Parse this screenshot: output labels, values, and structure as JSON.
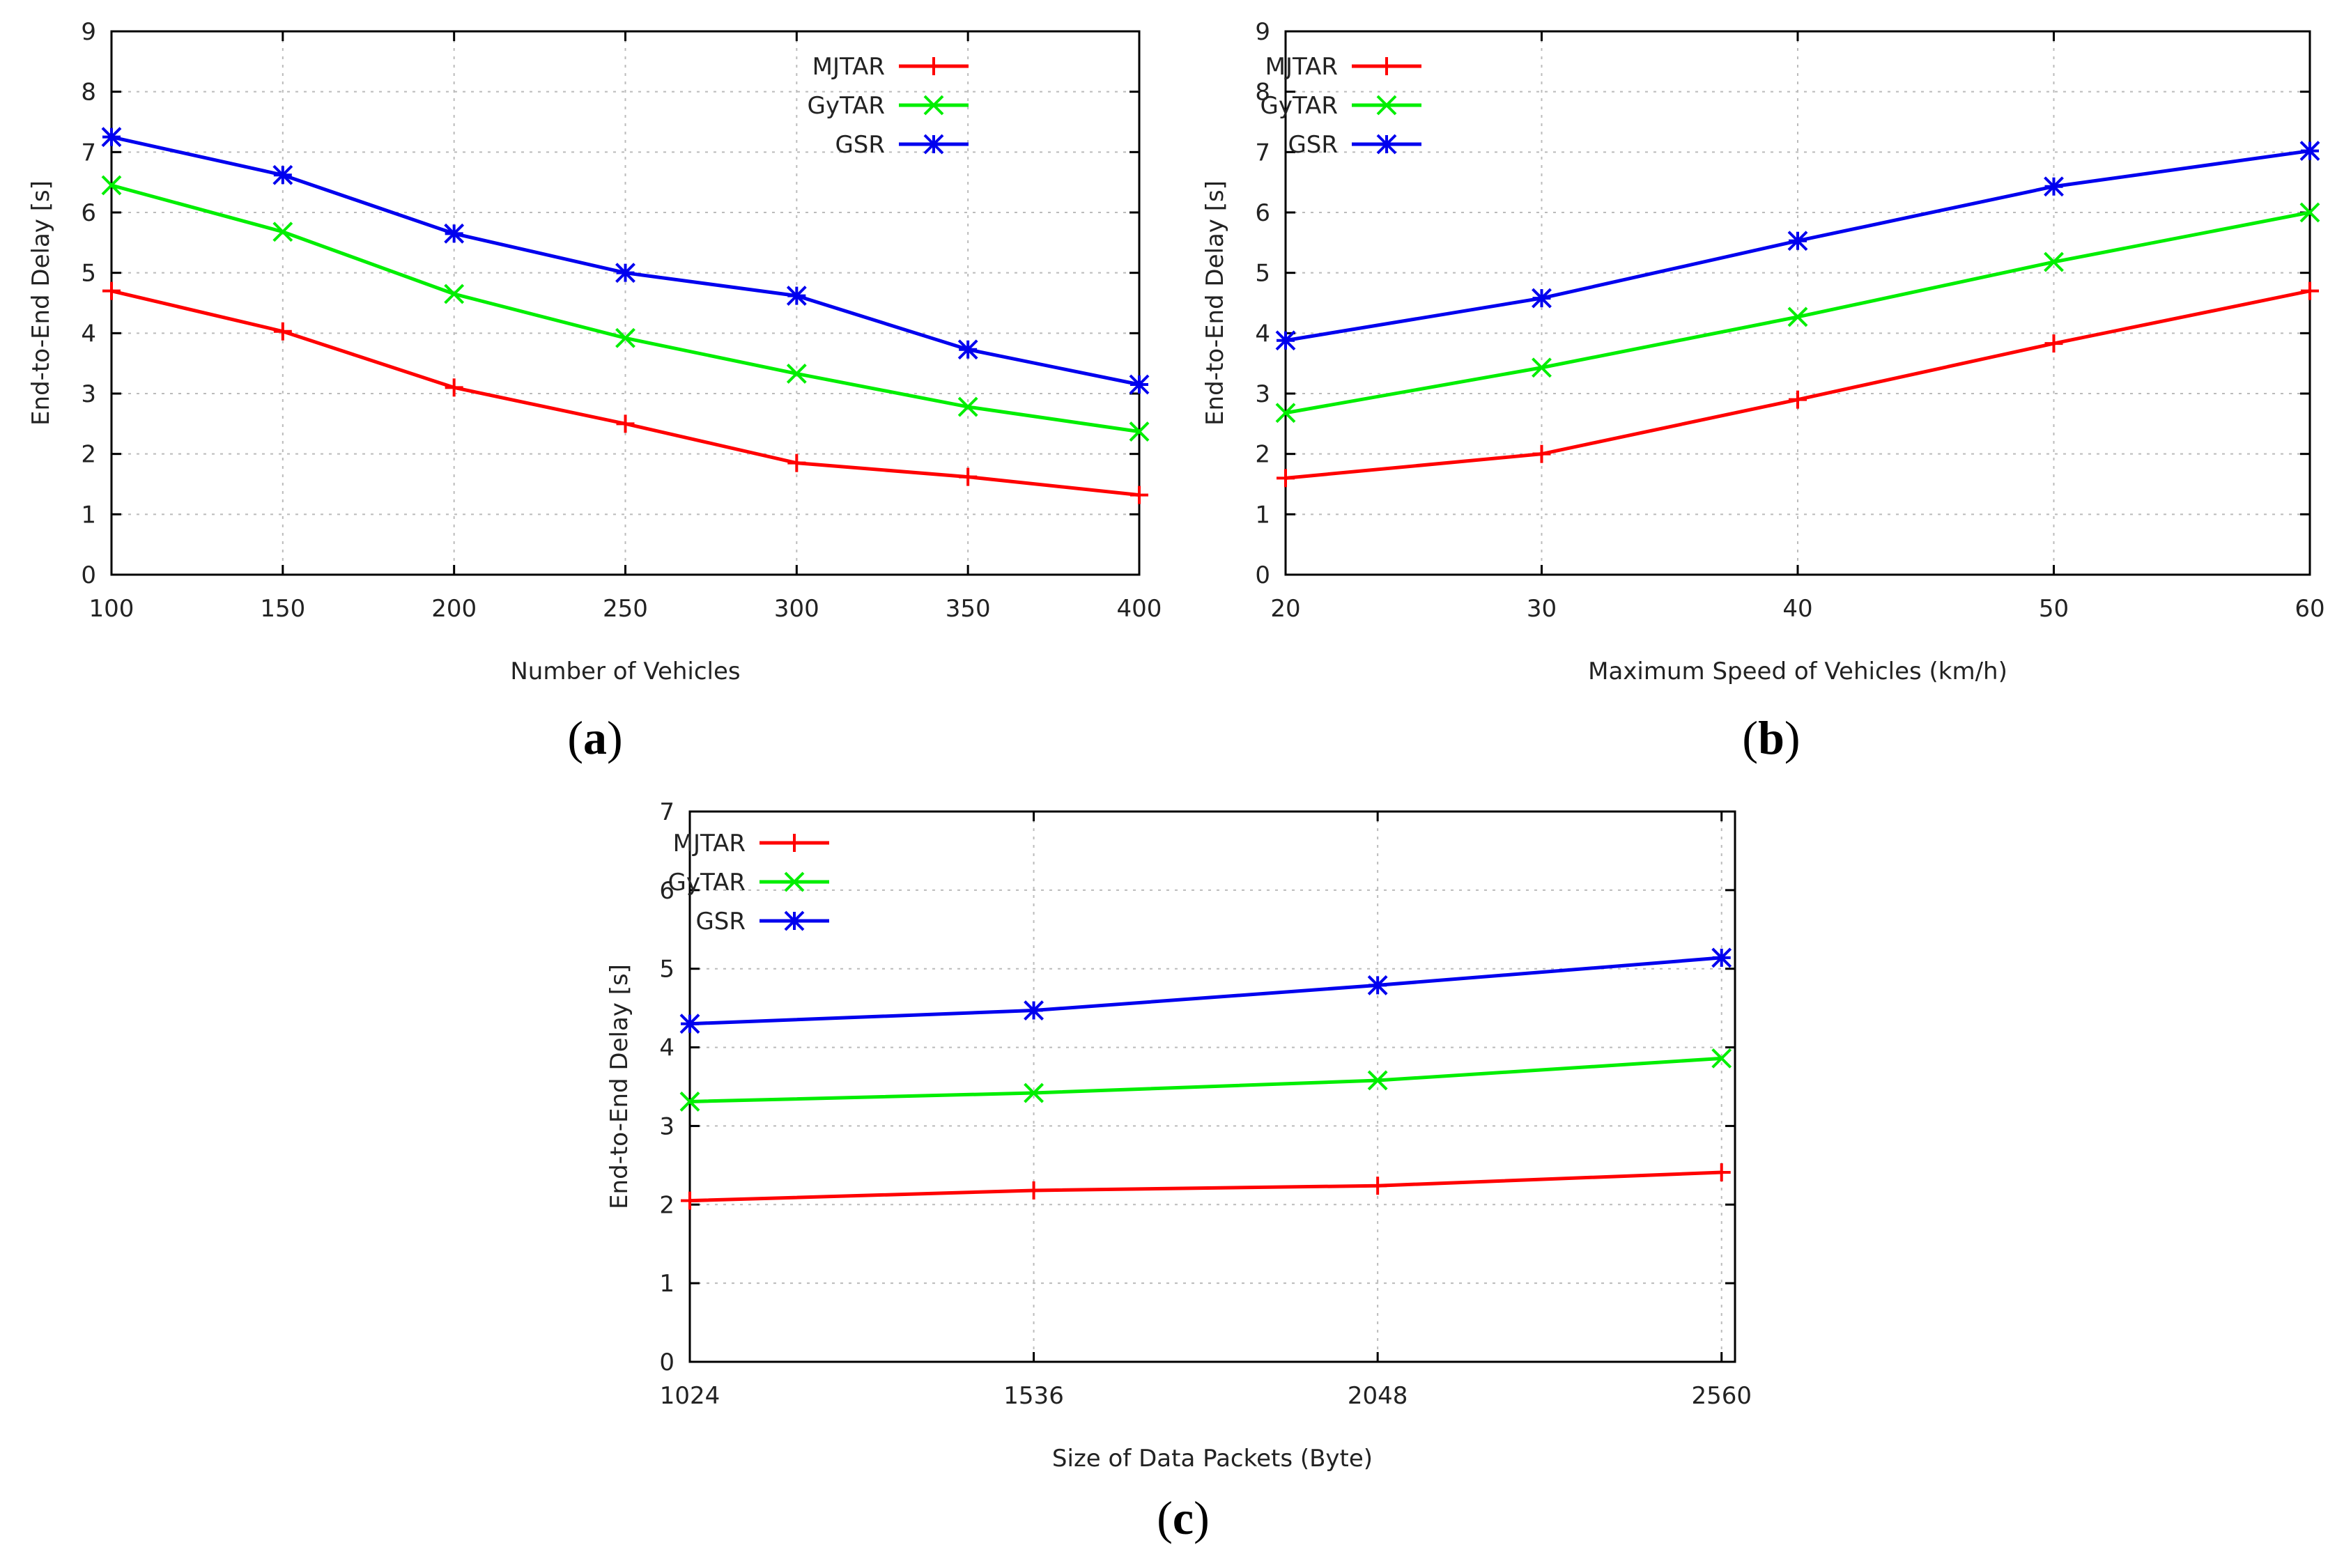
{
  "figure": {
    "captions": [
      "a",
      "b",
      "c"
    ]
  },
  "legend_entries": [
    "MJTAR",
    "GyTAR",
    "GSR"
  ],
  "colors": {
    "MJTAR": "#ff0000",
    "GyTAR": "#00ee00",
    "GSR": "#0000ee",
    "grid": "#bbbbbb",
    "axis": "#000000"
  },
  "markers": {
    "MJTAR": "plus",
    "GyTAR": "cross",
    "GSR": "asterisk"
  },
  "chart_data": [
    {
      "id": "a",
      "type": "line",
      "title": "",
      "xlabel": "Number of Vehicles",
      "ylabel": "End-to-End Delay [s]",
      "x": [
        100,
        150,
        200,
        250,
        300,
        350,
        400
      ],
      "xticks": [
        100,
        150,
        200,
        250,
        300,
        350,
        400
      ],
      "xlim": [
        100,
        400
      ],
      "ylim": [
        0,
        9
      ],
      "yticks": [
        0,
        1,
        2,
        3,
        4,
        5,
        6,
        7,
        8,
        9
      ],
      "grid": true,
      "legend": "top-right",
      "series": [
        {
          "name": "MJTAR",
          "values": [
            4.7,
            4.03,
            3.1,
            2.5,
            1.85,
            1.62,
            1.32
          ]
        },
        {
          "name": "GyTAR",
          "values": [
            6.45,
            5.68,
            4.65,
            3.92,
            3.33,
            2.78,
            2.37
          ]
        },
        {
          "name": "GSR",
          "values": [
            7.25,
            6.62,
            5.65,
            5.0,
            4.62,
            3.73,
            3.15
          ]
        }
      ]
    },
    {
      "id": "b",
      "type": "line",
      "title": "",
      "xlabel": "Maximum Speed of Vehicles (km/h)",
      "ylabel": "End-to-End Delay [s]",
      "x": [
        20,
        30,
        40,
        50,
        60
      ],
      "xticks": [
        20,
        30,
        40,
        50,
        60
      ],
      "xlim": [
        20,
        60
      ],
      "ylim": [
        0,
        9
      ],
      "yticks": [
        0,
        1,
        2,
        3,
        4,
        5,
        6,
        7,
        8,
        9
      ],
      "grid": true,
      "legend": "top-left",
      "series": [
        {
          "name": "MJTAR",
          "values": [
            1.6,
            2.0,
            2.9,
            3.83,
            4.7
          ]
        },
        {
          "name": "GyTAR",
          "values": [
            2.68,
            3.43,
            4.27,
            5.18,
            6.0
          ]
        },
        {
          "name": "GSR",
          "values": [
            3.88,
            4.58,
            5.53,
            6.43,
            7.02
          ]
        }
      ]
    },
    {
      "id": "c",
      "type": "line",
      "title": "",
      "xlabel": "Size of Data Packets (Byte)",
      "ylabel": "End-to-End Delay [s]",
      "x": [
        1024,
        1536,
        2048,
        2560
      ],
      "xticks": [
        1024,
        1536,
        2048,
        2560
      ],
      "xlim": [
        1024,
        2580
      ],
      "ylim": [
        0,
        7
      ],
      "yticks": [
        0,
        1,
        2,
        3,
        4,
        5,
        6,
        7
      ],
      "grid": true,
      "legend": "top-left",
      "series": [
        {
          "name": "MJTAR",
          "values": [
            2.05,
            2.18,
            2.24,
            2.41
          ]
        },
        {
          "name": "GyTAR",
          "values": [
            3.31,
            3.42,
            3.58,
            3.86
          ]
        },
        {
          "name": "GSR",
          "values": [
            4.3,
            4.47,
            4.79,
            5.14
          ]
        }
      ]
    }
  ]
}
